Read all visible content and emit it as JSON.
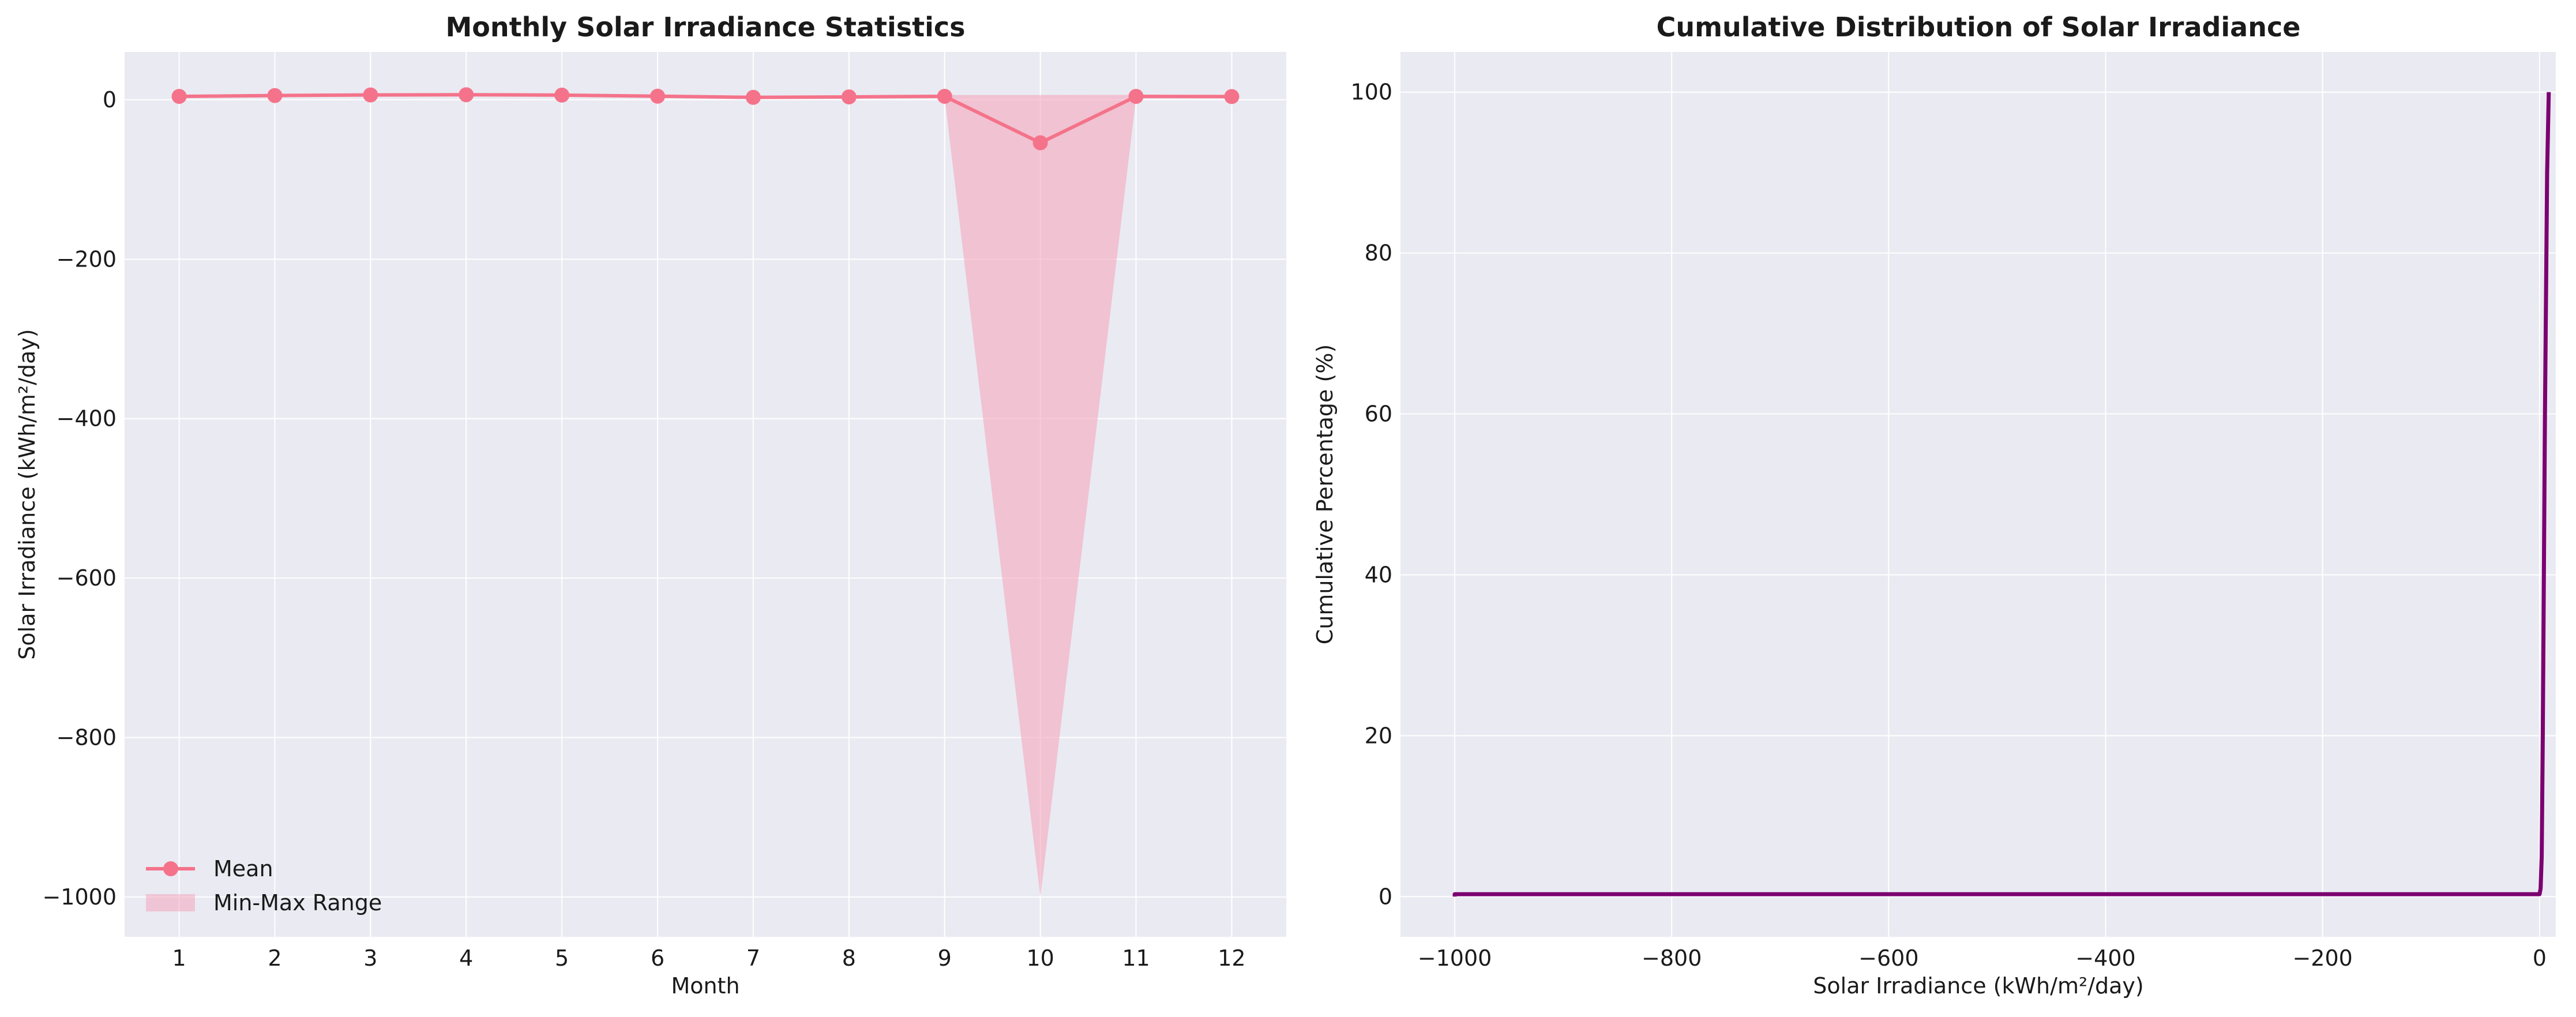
{
  "chart_data": [
    {
      "type": "line",
      "title": "Monthly Solar Irradiance Statistics",
      "xlabel": "Month",
      "ylabel": "Solar Irradiance (kWh/m²/day)",
      "x": [
        1,
        2,
        3,
        4,
        5,
        6,
        7,
        8,
        9,
        10,
        11,
        12
      ],
      "xticks": [
        "1",
        "2",
        "3",
        "4",
        "5",
        "6",
        "7",
        "8",
        "9",
        "10",
        "11",
        "12"
      ],
      "xlim": [
        0.43,
        12.57
      ],
      "ylim": [
        -1050,
        60
      ],
      "yticks": [
        0,
        -200,
        -400,
        -600,
        -800,
        -1000
      ],
      "ytick_labels": [
        "0",
        "−200",
        "−400",
        "−600",
        "−800",
        "−1000"
      ],
      "grid": true,
      "legend_placement": "lower-left",
      "series": [
        {
          "name": "Mean",
          "kind": "line-marker",
          "color": "#f4738a",
          "values": [
            4.2,
            5.3,
            6.0,
            6.3,
            5.8,
            4.5,
            3.0,
            3.6,
            4.3,
            -54.0,
            4.2,
            4.0
          ]
        },
        {
          "name": "Min-Max Range",
          "kind": "fill-between",
          "color": "#f4a0b8",
          "upper": [
            6.0,
            7.0,
            7.6,
            7.8,
            7.4,
            6.2,
            4.8,
            5.2,
            6.0,
            6.0,
            6.1,
            5.6
          ],
          "lower": [
            2.6,
            3.6,
            4.3,
            4.7,
            4.2,
            2.8,
            1.3,
            1.9,
            2.7,
            -1000,
            2.5,
            2.4
          ]
        }
      ]
    },
    {
      "type": "line",
      "title": "Cumulative Distribution of Solar Irradiance",
      "xlabel": "Solar Irradiance (kWh/m²/day)",
      "ylabel": "Cumulative Percentage (%)",
      "xlim": [
        -1050,
        15
      ],
      "ylim": [
        -5,
        105
      ],
      "xticks": [
        -1000,
        -800,
        -600,
        -400,
        -200,
        0
      ],
      "xtick_labels": [
        "−1000",
        "−800",
        "−600",
        "−400",
        "−200",
        "0"
      ],
      "yticks": [
        0,
        20,
        40,
        60,
        80,
        100
      ],
      "ytick_labels": [
        "0",
        "20",
        "40",
        "60",
        "80",
        "100"
      ],
      "grid": true,
      "series": [
        {
          "color": "#7b0070",
          "x": [
            -1000,
            -1000,
            -998,
            0,
            1,
            2,
            3,
            5,
            7,
            8.5
          ],
          "y": [
            0,
            0.3,
            0.3,
            0.3,
            1,
            5,
            20,
            60,
            90,
            100
          ]
        }
      ]
    }
  ]
}
